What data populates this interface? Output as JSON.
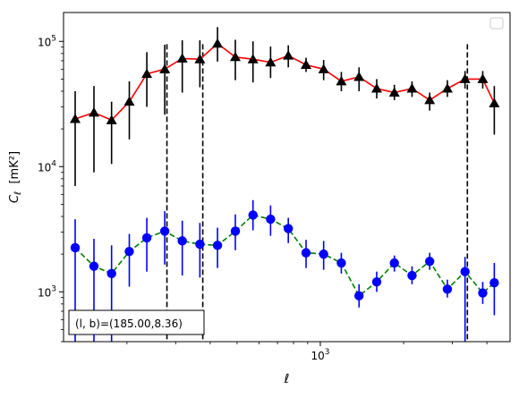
{
  "chart_data": {
    "type": "line",
    "xlabel": "ℓ",
    "ylabel": "Cℓ  [mK²]",
    "x_scale": "log",
    "y_scale": "log",
    "xlim": [
      118,
      4850
    ],
    "ylim": [
      400,
      170000
    ],
    "x_tick_labels": [
      {
        "value": 1000,
        "base": "10",
        "exp": "3"
      }
    ],
    "y_tick_labels": [
      {
        "value": 1000,
        "base": "10",
        "exp": "3"
      },
      {
        "value": 10000,
        "base": "10",
        "exp": "4"
      },
      {
        "value": 100000,
        "base": "10",
        "exp": "5"
      }
    ],
    "legend": {
      "placement": "top-right",
      "entries": []
    },
    "annotation": "(l, b)=(185.00,8.36)",
    "vlines": [
      279,
      376,
      3400
    ],
    "series": [
      {
        "color": "#ff0000",
        "marker_color": "#000000",
        "marker": "triangle",
        "linestyle": "solid",
        "x": [
          130,
          152,
          176,
          204,
          236,
          274,
          317,
          367,
          425,
          493,
          571,
          661,
          766,
          888,
          1028,
          1191,
          1380,
          1599,
          1852,
          2145,
          2485,
          2879,
          3335,
          3864,
          4254
        ],
        "y": [
          24000,
          27000,
          23500,
          33000,
          55000,
          60000,
          73000,
          72000,
          96000,
          75000,
          72000,
          68000,
          77000,
          65000,
          60000,
          48000,
          52000,
          42000,
          39000,
          42000,
          34000,
          42000,
          50000,
          50000,
          32000
        ],
        "yerr_low": [
          7000,
          9000,
          10500,
          16500,
          30000,
          26000,
          39000,
          43000,
          69000,
          49000,
          47000,
          51000,
          62000,
          57000,
          49000,
          40000,
          40000,
          35000,
          34000,
          36000,
          28000,
          36000,
          42000,
          42000,
          18000
        ],
        "yerr_high": [
          40000,
          44000,
          33000,
          48000,
          82000,
          94000,
          102000,
          102000,
          130000,
          103000,
          100000,
          91000,
          93000,
          74000,
          71000,
          57000,
          62000,
          50000,
          45000,
          48000,
          39000,
          49000,
          58000,
          58000,
          44000
        ]
      },
      {
        "color": "#008000",
        "marker_color": "#0000ff",
        "marker": "circle",
        "linestyle": "dashed",
        "x": [
          130,
          152,
          176,
          204,
          236,
          274,
          317,
          367,
          425,
          493,
          571,
          661,
          766,
          888,
          1028,
          1191,
          1380,
          1599,
          1852,
          2145,
          2485,
          2879,
          3335,
          3864,
          4254
        ],
        "y": [
          2250,
          1600,
          1400,
          2100,
          2700,
          3050,
          2550,
          2400,
          2350,
          3050,
          4100,
          3800,
          3200,
          2050,
          2000,
          1700,
          930,
          1200,
          1700,
          1350,
          1750,
          1050,
          1450,
          980,
          1180
        ],
        "yerr_low": [
          400,
          400,
          400,
          1100,
          1450,
          1650,
          1350,
          1300,
          1550,
          2150,
          3100,
          2800,
          2450,
          1550,
          1500,
          1400,
          750,
          1000,
          1450,
          1150,
          1500,
          900,
          400,
          800,
          650
        ],
        "yerr_high": [
          3800,
          2650,
          2350,
          2900,
          3900,
          4400,
          3700,
          3550,
          3250,
          4150,
          5400,
          4900,
          3900,
          2600,
          2550,
          2050,
          1150,
          1450,
          1950,
          1600,
          2050,
          1250,
          1900,
          1200,
          1700
        ]
      }
    ]
  }
}
